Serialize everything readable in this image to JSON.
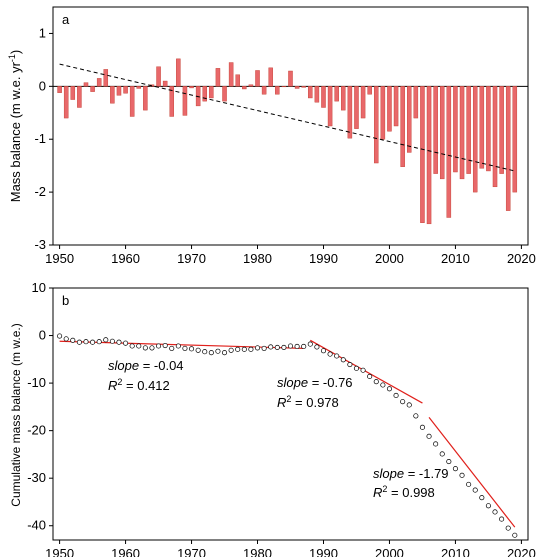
{
  "chart_data": [
    {
      "type": "bar",
      "panel_label": "a",
      "ylabel": "Mass balance (m w.e. yr",
      "ylabel_sup": "-1",
      "ylabel_close": ")",
      "xlim": [
        1949,
        2021
      ],
      "ylim": [
        -3,
        1.5
      ],
      "xticks": [
        1950,
        1960,
        1970,
        1980,
        1990,
        2000,
        2010,
        2020
      ],
      "yticks": [
        1,
        0,
        -1,
        -2,
        -3
      ],
      "bar_color": "#e8686a",
      "bar_edge": "#c0392b",
      "x": [
        1950,
        1951,
        1952,
        1953,
        1954,
        1955,
        1956,
        1957,
        1958,
        1959,
        1960,
        1961,
        1962,
        1963,
        1964,
        1965,
        1966,
        1967,
        1968,
        1969,
        1970,
        1971,
        1972,
        1973,
        1974,
        1975,
        1976,
        1977,
        1978,
        1979,
        1980,
        1981,
        1982,
        1983,
        1984,
        1985,
        1986,
        1987,
        1988,
        1989,
        1990,
        1991,
        1992,
        1993,
        1994,
        1995,
        1996,
        1997,
        1998,
        1999,
        2000,
        2001,
        2002,
        2003,
        2004,
        2005,
        2006,
        2007,
        2008,
        2009,
        2010,
        2011,
        2012,
        2013,
        2014,
        2015,
        2016,
        2017,
        2018,
        2019
      ],
      "values": [
        -0.12,
        -0.6,
        -0.25,
        -0.4,
        0.07,
        -0.1,
        0.15,
        0.32,
        -0.32,
        -0.17,
        -0.13,
        -0.57,
        -0.04,
        -0.45,
        0.03,
        0.37,
        0.1,
        -0.57,
        0.52,
        -0.55,
        -0.03,
        -0.37,
        -0.28,
        -0.22,
        0.34,
        -0.28,
        0.45,
        0.22,
        -0.05,
        0.03,
        0.3,
        -0.15,
        0.35,
        -0.15,
        -0.01,
        0.29,
        -0.04,
        -0.02,
        -0.22,
        -0.3,
        -0.4,
        -0.75,
        -0.28,
        -0.45,
        -0.98,
        -0.8,
        -0.6,
        -0.15,
        -1.45,
        -1.0,
        -0.85,
        -0.75,
        -1.52,
        -1.25,
        -0.6,
        -2.58,
        -2.6,
        -1.65,
        -1.75,
        -2.48,
        -1.62,
        -1.75,
        -1.65,
        -2.0,
        -1.55,
        -1.6,
        -1.9,
        -1.65,
        -2.35,
        -2.0
      ],
      "trend_line": {
        "x": [
          1950,
          2019
        ],
        "y": [
          0.42,
          -1.6
        ],
        "style": "dashed"
      }
    },
    {
      "type": "scatter",
      "panel_label": "b",
      "ylabel": "Cumulative mass balance (m w.e.)",
      "xlim": [
        1949,
        2021
      ],
      "ylim": [
        -43,
        10
      ],
      "xticks": [
        1950,
        1960,
        1970,
        1980,
        1990,
        2000,
        2010,
        2020
      ],
      "yticks": [
        10,
        0,
        -10,
        -20,
        -30,
        -40
      ],
      "x": [
        1950,
        1951,
        1952,
        1953,
        1954,
        1955,
        1956,
        1957,
        1958,
        1959,
        1960,
        1961,
        1962,
        1963,
        1964,
        1965,
        1966,
        1967,
        1968,
        1969,
        1970,
        1971,
        1972,
        1973,
        1974,
        1975,
        1976,
        1977,
        1978,
        1979,
        1980,
        1981,
        1982,
        1983,
        1984,
        1985,
        1986,
        1987,
        1988,
        1989,
        1990,
        1991,
        1992,
        1993,
        1994,
        1995,
        1996,
        1997,
        1998,
        1999,
        2000,
        2001,
        2002,
        2003,
        2004,
        2005,
        2006,
        2007,
        2008,
        2009,
        2010,
        2011,
        2012,
        2013,
        2014,
        2015,
        2016,
        2017,
        2018,
        2019
      ],
      "values": [
        -0.1,
        -0.7,
        -1.0,
        -1.4,
        -1.3,
        -1.4,
        -1.3,
        -0.9,
        -1.2,
        -1.4,
        -1.6,
        -2.2,
        -2.2,
        -2.6,
        -2.6,
        -2.2,
        -2.1,
        -2.7,
        -2.2,
        -2.7,
        -2.8,
        -3.1,
        -3.4,
        -3.6,
        -3.3,
        -3.6,
        -3.1,
        -2.9,
        -2.9,
        -2.9,
        -2.6,
        -2.7,
        -2.4,
        -2.5,
        -2.5,
        -2.2,
        -2.3,
        -2.3,
        -1.8,
        -2.4,
        -3.2,
        -3.9,
        -4.3,
        -5.1,
        -6.1,
        -6.9,
        -7.3,
        -8.6,
        -9.7,
        -10.4,
        -11.2,
        -12.6,
        -13.9,
        -14.6,
        -16.9,
        -19.3,
        -21.2,
        -22.8,
        -24.9,
        -26.5,
        -28.0,
        -29.4,
        -31.3,
        -32.5,
        -34.1,
        -35.8,
        -37.1,
        -38.6,
        -40.5,
        -42.0
      ],
      "fit_lines": [
        {
          "x": [
            1950,
            1987
          ],
          "y": [
            -1.2,
            -2.7
          ],
          "slope": "-0.04",
          "r2": "0.412"
        },
        {
          "x": [
            1988,
            2005
          ],
          "y": [
            -1.0,
            -14.2
          ],
          "slope": "-0.76",
          "r2": "0.978"
        },
        {
          "x": [
            2006,
            2019
          ],
          "y": [
            -17.2,
            -40.3
          ],
          "slope": "-1.79",
          "r2": "0.998"
        }
      ],
      "fit_color": "#e0201b",
      "slope_label": "slope",
      "r2_label": "R",
      "r2_sup": "2"
    }
  ]
}
